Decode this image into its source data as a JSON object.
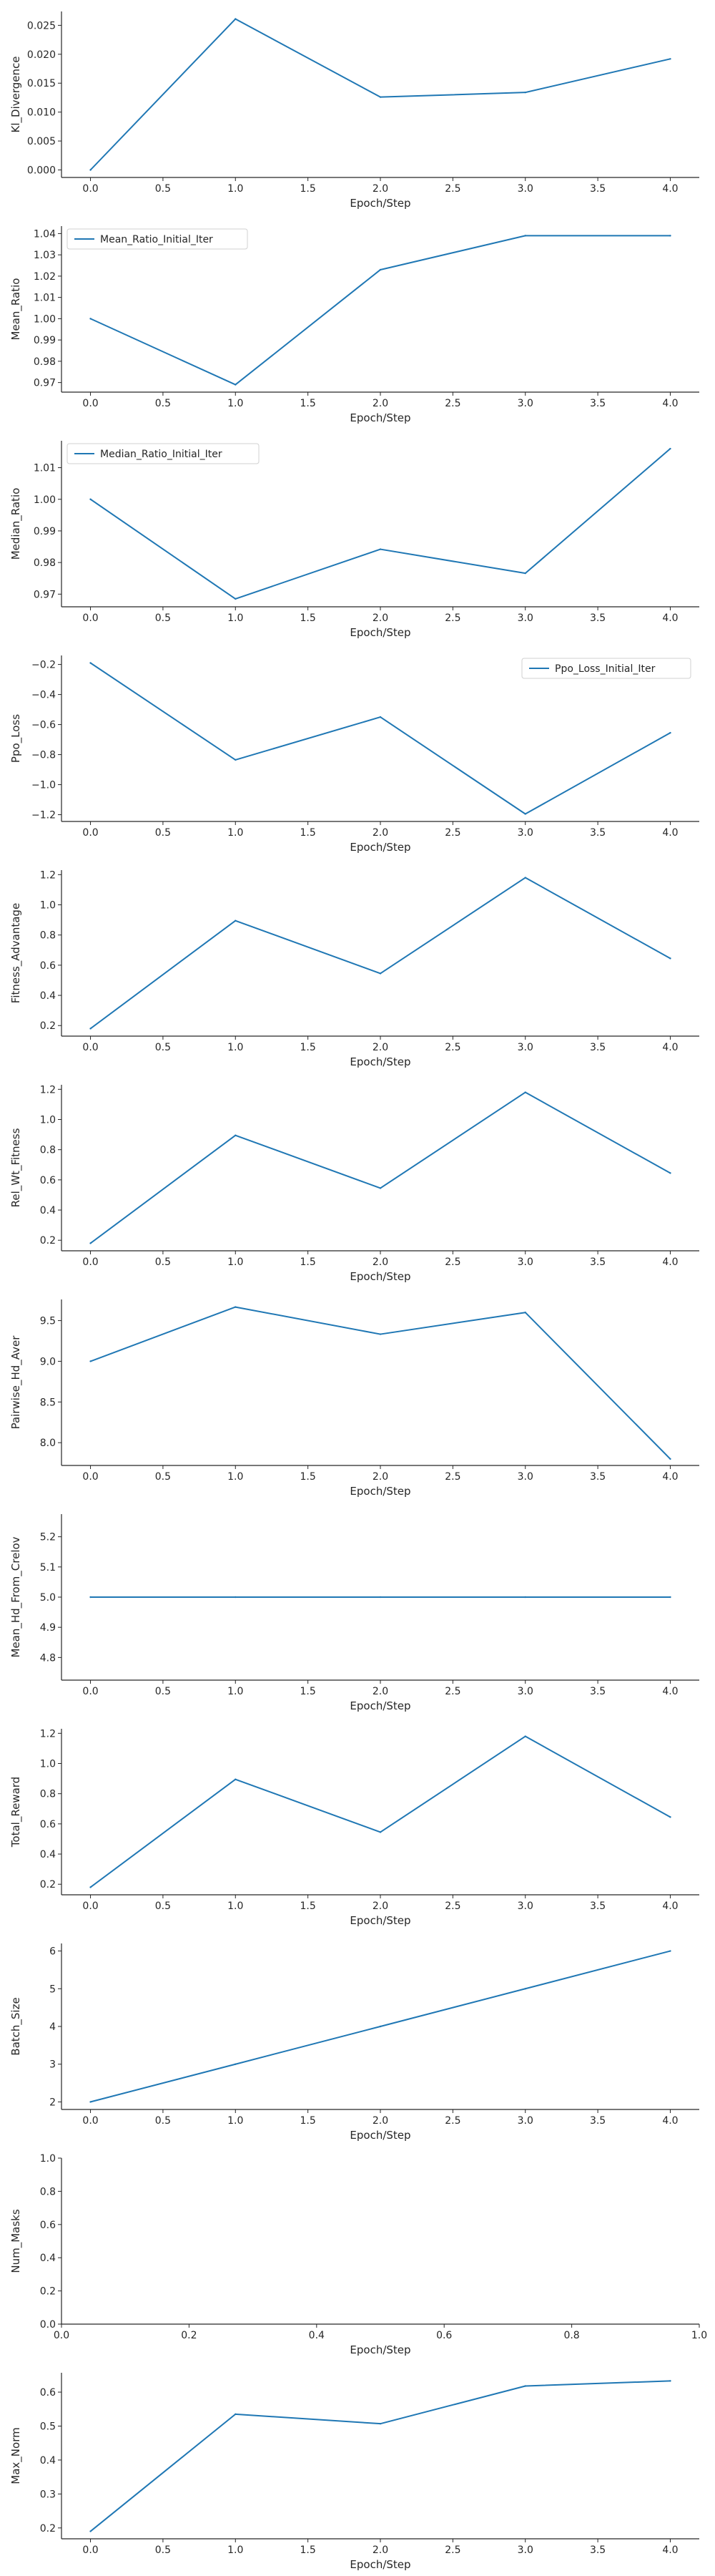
{
  "figure": {
    "line_color": "#1f77b4",
    "spine_color": "#262626",
    "background": "#ffffff"
  },
  "chart_data": [
    {
      "type": "line",
      "xlabel": "Epoch/Step",
      "ylabel": "Kl_Divergence",
      "xlim": [
        -0.2,
        4.2
      ],
      "ylim": [
        -0.0013,
        0.0274
      ],
      "xticks": [
        0.0,
        0.5,
        1.0,
        1.5,
        2.0,
        2.5,
        3.0,
        3.5,
        4.0
      ],
      "xtick_labels": [
        "0.0",
        "0.5",
        "1.0",
        "1.5",
        "2.0",
        "2.5",
        "3.0",
        "3.5",
        "4.0"
      ],
      "yticks": [
        0.0,
        0.005,
        0.01,
        0.015,
        0.02,
        0.025
      ],
      "ytick_labels": [
        "0.000",
        "0.005",
        "0.010",
        "0.015",
        "0.020",
        "0.025"
      ],
      "x": [
        0,
        1,
        2,
        3,
        4
      ],
      "series": [
        {
          "values": [
            0.0,
            0.0261,
            0.0126,
            0.0134,
            0.0192
          ]
        }
      ]
    },
    {
      "type": "line",
      "xlabel": "Epoch/Step",
      "ylabel": "Mean_Ratio",
      "xlim": [
        -0.2,
        4.2
      ],
      "ylim": [
        0.9655,
        1.0435
      ],
      "xticks": [
        0.0,
        0.5,
        1.0,
        1.5,
        2.0,
        2.5,
        3.0,
        3.5,
        4.0
      ],
      "xtick_labels": [
        "0.0",
        "0.5",
        "1.0",
        "1.5",
        "2.0",
        "2.5",
        "3.0",
        "3.5",
        "4.0"
      ],
      "yticks": [
        0.97,
        0.98,
        0.99,
        1.0,
        1.01,
        1.02,
        1.03,
        1.04
      ],
      "ytick_labels": [
        "0.97",
        "0.98",
        "0.99",
        "1.00",
        "1.01",
        "1.02",
        "1.03",
        "1.04"
      ],
      "legend": "upper left",
      "x": [
        0,
        1,
        2,
        3,
        4
      ],
      "series": [
        {
          "name": "Mean_Ratio_Initial_Iter",
          "values": [
            1.0,
            0.969,
            1.023,
            1.039,
            1.039
          ]
        }
      ]
    },
    {
      "type": "line",
      "xlabel": "Epoch/Step",
      "ylabel": "Median_Ratio",
      "xlim": [
        -0.2,
        4.2
      ],
      "ylim": [
        0.966,
        1.0185
      ],
      "xticks": [
        0.0,
        0.5,
        1.0,
        1.5,
        2.0,
        2.5,
        3.0,
        3.5,
        4.0
      ],
      "xtick_labels": [
        "0.0",
        "0.5",
        "1.0",
        "1.5",
        "2.0",
        "2.5",
        "3.0",
        "3.5",
        "4.0"
      ],
      "yticks": [
        0.97,
        0.98,
        0.99,
        1.0,
        1.01
      ],
      "ytick_labels": [
        "0.97",
        "0.98",
        "0.99",
        "1.00",
        "1.01"
      ],
      "legend": "upper left",
      "x": [
        0,
        1,
        2,
        3,
        4
      ],
      "series": [
        {
          "name": "Median_Ratio_Initial_Iter",
          "values": [
            1.0,
            0.9685,
            0.9842,
            0.9766,
            1.016
          ]
        }
      ]
    },
    {
      "type": "line",
      "xlabel": "Epoch/Step",
      "ylabel": "Ppo_Loss",
      "xlim": [
        -0.2,
        4.2
      ],
      "ylim": [
        -1.245,
        -0.14
      ],
      "xticks": [
        0.0,
        0.5,
        1.0,
        1.5,
        2.0,
        2.5,
        3.0,
        3.5,
        4.0
      ],
      "xtick_labels": [
        "0.0",
        "0.5",
        "1.0",
        "1.5",
        "2.0",
        "2.5",
        "3.0",
        "3.5",
        "4.0"
      ],
      "yticks": [
        -0.2,
        -0.4,
        -0.6,
        -0.8,
        -1.0,
        -1.2
      ],
      "ytick_labels": [
        "−0.2",
        "−0.4",
        "−0.6",
        "−0.8",
        "−1.0",
        "−1.2"
      ],
      "legend": "upper right",
      "x": [
        0,
        1,
        2,
        3,
        4
      ],
      "series": [
        {
          "name": "Ppo_Loss_Initial_Iter",
          "values": [
            -0.19,
            -0.835,
            -0.55,
            -1.195,
            -0.655
          ]
        }
      ]
    },
    {
      "type": "line",
      "xlabel": "Epoch/Step",
      "ylabel": "Fitness_Advantage",
      "xlim": [
        -0.2,
        4.2
      ],
      "ylim": [
        0.13,
        1.23
      ],
      "xticks": [
        0.0,
        0.5,
        1.0,
        1.5,
        2.0,
        2.5,
        3.0,
        3.5,
        4.0
      ],
      "xtick_labels": [
        "0.0",
        "0.5",
        "1.0",
        "1.5",
        "2.0",
        "2.5",
        "3.0",
        "3.5",
        "4.0"
      ],
      "yticks": [
        0.2,
        0.4,
        0.6,
        0.8,
        1.0,
        1.2
      ],
      "ytick_labels": [
        "0.2",
        "0.4",
        "0.6",
        "0.8",
        "1.0",
        "1.2"
      ],
      "x": [
        0,
        1,
        2,
        3,
        4
      ],
      "series": [
        {
          "values": [
            0.18,
            0.895,
            0.545,
            1.18,
            0.645
          ]
        }
      ]
    },
    {
      "type": "line",
      "xlabel": "Epoch/Step",
      "ylabel": "Rel_Wt_Fitness",
      "xlim": [
        -0.2,
        4.2
      ],
      "ylim": [
        0.13,
        1.23
      ],
      "xticks": [
        0.0,
        0.5,
        1.0,
        1.5,
        2.0,
        2.5,
        3.0,
        3.5,
        4.0
      ],
      "xtick_labels": [
        "0.0",
        "0.5",
        "1.0",
        "1.5",
        "2.0",
        "2.5",
        "3.0",
        "3.5",
        "4.0"
      ],
      "yticks": [
        0.2,
        0.4,
        0.6,
        0.8,
        1.0,
        1.2
      ],
      "ytick_labels": [
        "0.2",
        "0.4",
        "0.6",
        "0.8",
        "1.0",
        "1.2"
      ],
      "x": [
        0,
        1,
        2,
        3,
        4
      ],
      "series": [
        {
          "values": [
            0.18,
            0.895,
            0.545,
            1.18,
            0.645
          ]
        }
      ]
    },
    {
      "type": "line",
      "xlabel": "Epoch/Step",
      "ylabel": "Pairwise_Hd_Aver",
      "xlim": [
        -0.2,
        4.2
      ],
      "ylim": [
        7.72,
        9.76
      ],
      "xticks": [
        0.0,
        0.5,
        1.0,
        1.5,
        2.0,
        2.5,
        3.0,
        3.5,
        4.0
      ],
      "xtick_labels": [
        "0.0",
        "0.5",
        "1.0",
        "1.5",
        "2.0",
        "2.5",
        "3.0",
        "3.5",
        "4.0"
      ],
      "yticks": [
        8.0,
        8.5,
        9.0,
        9.5
      ],
      "ytick_labels": [
        "8.0",
        "8.5",
        "9.0",
        "9.5"
      ],
      "x": [
        0,
        1,
        2,
        3,
        4
      ],
      "series": [
        {
          "values": [
            9.0,
            9.667,
            9.333,
            9.6,
            7.8
          ]
        }
      ]
    },
    {
      "type": "line",
      "xlabel": "Epoch/Step",
      "ylabel": "Mean_Hd_From_Crelov",
      "xlim": [
        -0.2,
        4.2
      ],
      "ylim": [
        4.725,
        5.275
      ],
      "xticks": [
        0.0,
        0.5,
        1.0,
        1.5,
        2.0,
        2.5,
        3.0,
        3.5,
        4.0
      ],
      "xtick_labels": [
        "0.0",
        "0.5",
        "1.0",
        "1.5",
        "2.0",
        "2.5",
        "3.0",
        "3.5",
        "4.0"
      ],
      "yticks": [
        4.8,
        4.9,
        5.0,
        5.1,
        5.2
      ],
      "ytick_labels": [
        "4.8",
        "4.9",
        "5.0",
        "5.1",
        "5.2"
      ],
      "x": [
        0,
        1,
        2,
        3,
        4
      ],
      "series": [
        {
          "values": [
            5.0,
            5.0,
            5.0,
            5.0,
            5.0
          ]
        }
      ]
    },
    {
      "type": "line",
      "xlabel": "Epoch/Step",
      "ylabel": "Total_Reward",
      "xlim": [
        -0.2,
        4.2
      ],
      "ylim": [
        0.13,
        1.23
      ],
      "xticks": [
        0.0,
        0.5,
        1.0,
        1.5,
        2.0,
        2.5,
        3.0,
        3.5,
        4.0
      ],
      "xtick_labels": [
        "0.0",
        "0.5",
        "1.0",
        "1.5",
        "2.0",
        "2.5",
        "3.0",
        "3.5",
        "4.0"
      ],
      "yticks": [
        0.2,
        0.4,
        0.6,
        0.8,
        1.0,
        1.2
      ],
      "ytick_labels": [
        "0.2",
        "0.4",
        "0.6",
        "0.8",
        "1.0",
        "1.2"
      ],
      "x": [
        0,
        1,
        2,
        3,
        4
      ],
      "series": [
        {
          "values": [
            0.18,
            0.895,
            0.545,
            1.18,
            0.645
          ]
        }
      ]
    },
    {
      "type": "line",
      "xlabel": "Epoch/Step",
      "ylabel": "Batch_Size",
      "xlim": [
        -0.2,
        4.2
      ],
      "ylim": [
        1.8,
        6.2
      ],
      "xticks": [
        0.0,
        0.5,
        1.0,
        1.5,
        2.0,
        2.5,
        3.0,
        3.5,
        4.0
      ],
      "xtick_labels": [
        "0.0",
        "0.5",
        "1.0",
        "1.5",
        "2.0",
        "2.5",
        "3.0",
        "3.5",
        "4.0"
      ],
      "yticks": [
        2,
        3,
        4,
        5,
        6
      ],
      "ytick_labels": [
        "2",
        "3",
        "4",
        "5",
        "6"
      ],
      "x": [
        0,
        1,
        2,
        3,
        4
      ],
      "series": [
        {
          "values": [
            2,
            3,
            4,
            5,
            6
          ]
        }
      ]
    },
    {
      "type": "line",
      "xlabel": "Epoch/Step",
      "ylabel": "Num_Masks",
      "xlim": [
        0.0,
        1.0
      ],
      "ylim": [
        0.0,
        1.0
      ],
      "xticks": [
        0.0,
        0.2,
        0.4,
        0.6,
        0.8,
        1.0
      ],
      "xtick_labels": [
        "0.0",
        "0.2",
        "0.4",
        "0.6",
        "0.8",
        "1.0"
      ],
      "yticks": [
        0.0,
        0.2,
        0.4,
        0.6,
        0.8,
        1.0
      ],
      "ytick_labels": [
        "0.0",
        "0.2",
        "0.4",
        "0.6",
        "0.8",
        "1.0"
      ],
      "x": [],
      "series": []
    },
    {
      "type": "line",
      "xlabel": "Epoch/Step",
      "ylabel": "Max_Norm",
      "xlim": [
        -0.2,
        4.2
      ],
      "ylim": [
        0.168,
        0.657
      ],
      "xticks": [
        0.0,
        0.5,
        1.0,
        1.5,
        2.0,
        2.5,
        3.0,
        3.5,
        4.0
      ],
      "xtick_labels": [
        "0.0",
        "0.5",
        "1.0",
        "1.5",
        "2.0",
        "2.5",
        "3.0",
        "3.5",
        "4.0"
      ],
      "yticks": [
        0.2,
        0.3,
        0.4,
        0.5,
        0.6
      ],
      "ytick_labels": [
        "0.2",
        "0.3",
        "0.4",
        "0.5",
        "0.6"
      ],
      "x": [
        0,
        1,
        2,
        3,
        4
      ],
      "series": [
        {
          "values": [
            0.19,
            0.535,
            0.507,
            0.618,
            0.633
          ]
        }
      ]
    }
  ]
}
